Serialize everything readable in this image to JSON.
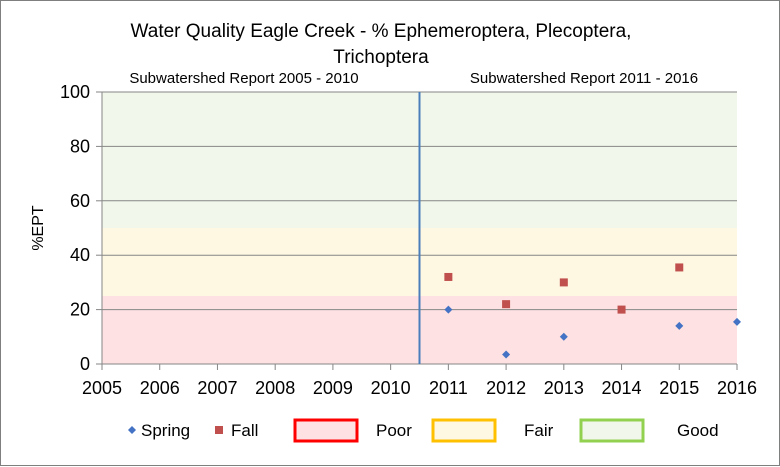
{
  "chart_data": {
    "type": "scatter",
    "title": "Water Quality Eagle Creek - % Ephemeroptera, Plecoptera, Trichoptera",
    "title_lines": [
      "Water Quality Eagle Creek - % Ephemeroptera, Plecoptera,",
      "Trichoptera"
    ],
    "xlabel": "",
    "ylabel": "%EPT",
    "xlim": [
      2005,
      2016
    ],
    "ylim": [
      0,
      100
    ],
    "x_ticks": [
      "2005",
      "2006",
      "2007",
      "2008",
      "2009",
      "2010",
      "2011",
      "2012",
      "2013",
      "2014",
      "2015",
      "2016"
    ],
    "y_ticks": [
      "0",
      "20",
      "40",
      "60",
      "80",
      "100"
    ],
    "grid": true,
    "divider_x": 2010.5,
    "report_labels": [
      "Subwatershed  Report 2005 - 2010",
      "Subwatershed  Report 2011  - 2016"
    ],
    "bands": [
      {
        "name": "Poor",
        "from": 0,
        "to": 25,
        "fill": "#fde1e3",
        "stroke": "#ff0000"
      },
      {
        "name": "Fair",
        "from": 25,
        "to": 50,
        "fill": "#fef8e3",
        "stroke": "#ffc000"
      },
      {
        "name": "Good",
        "from": 50,
        "to": 100,
        "fill": "#f1f8eb",
        "stroke": "#92d050"
      }
    ],
    "series": [
      {
        "name": "Spring",
        "color": "#4472c4",
        "marker": "diamond",
        "points": [
          [
            2011,
            20
          ],
          [
            2012,
            3.5
          ],
          [
            2013,
            10
          ],
          [
            2014,
            20
          ],
          [
            2015,
            14
          ],
          [
            2016,
            15.5
          ]
        ]
      },
      {
        "name": "Fall",
        "color": "#c0504d",
        "marker": "square",
        "points": [
          [
            2011,
            32
          ],
          [
            2012,
            22
          ],
          [
            2013,
            30
          ],
          [
            2014,
            20
          ],
          [
            2015,
            35.5
          ]
        ]
      }
    ],
    "legend": {
      "placement": "bottom",
      "items": [
        {
          "label": "Spring",
          "kind": "marker",
          "marker": "diamond",
          "color": "#4472c4"
        },
        {
          "label": "Fall",
          "kind": "marker",
          "marker": "square",
          "color": "#c0504d"
        },
        {
          "label": "Poor",
          "kind": "box",
          "fill": "#fde1e3",
          "stroke": "#ff0000"
        },
        {
          "label": "Fair",
          "kind": "box",
          "fill": "#fef8e3",
          "stroke": "#ffc000"
        },
        {
          "label": "Good",
          "kind": "box",
          "fill": "#f1f8eb",
          "stroke": "#92d050"
        }
      ]
    }
  }
}
